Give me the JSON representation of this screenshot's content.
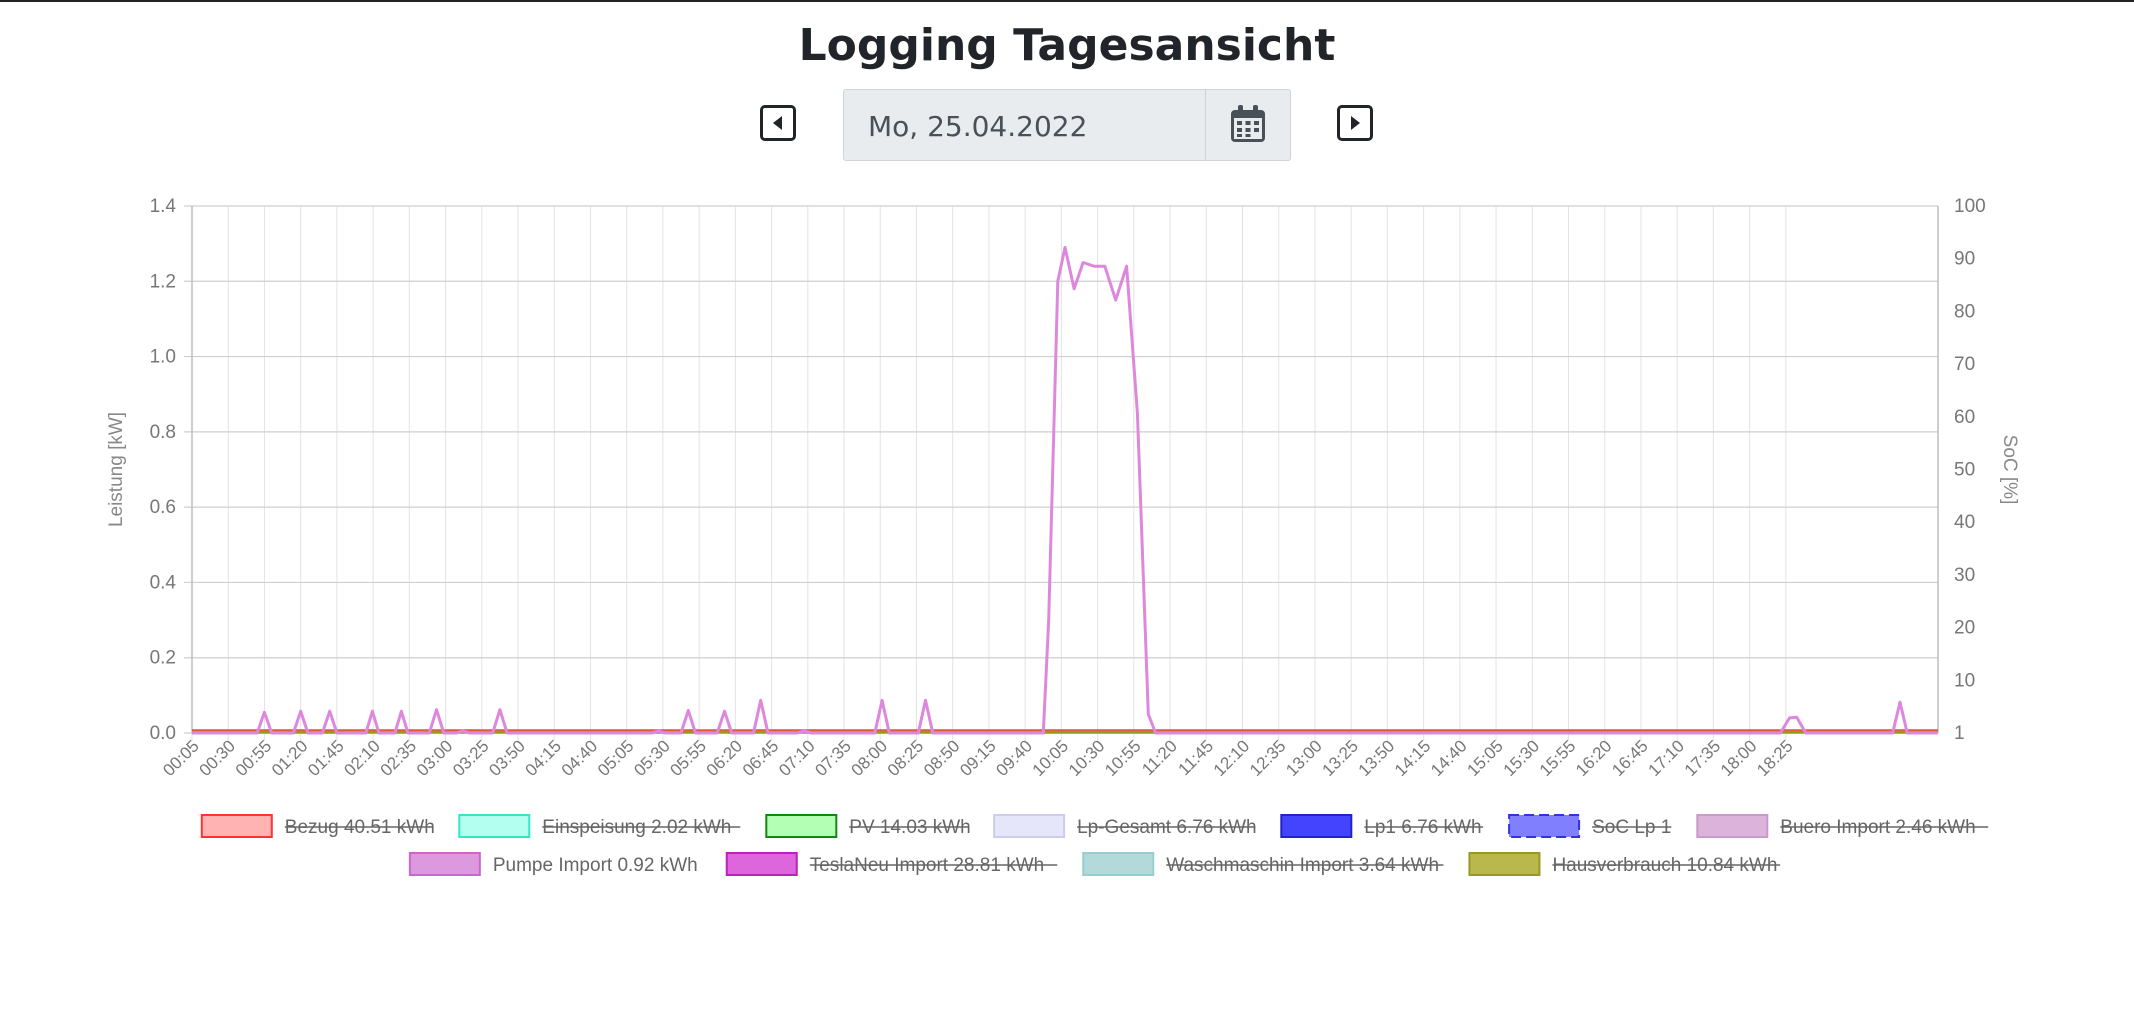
{
  "header": {
    "title": "Logging Tagesansicht",
    "date_value": "Mo, 25.04.2022"
  },
  "icons": {
    "prev": "caret-left-square-icon",
    "next": "caret-right-square-icon",
    "calendar": "calendar-icon"
  },
  "chart_data": {
    "type": "line",
    "ylabel_left": "Leistung [kW]",
    "ylabel_right": "SoC [%]",
    "ylim_left": [
      0,
      1.4
    ],
    "yticks_left": [
      "0.0",
      "0.2",
      "0.4",
      "0.6",
      "0.8",
      "1.0",
      "1.2",
      "1.4"
    ],
    "yticks_right": [
      "1",
      "10",
      "20",
      "30",
      "40",
      "50",
      "60",
      "70",
      "80",
      "90",
      "100"
    ],
    "x_labels": [
      "00:05",
      "00:30",
      "00:55",
      "01:20",
      "01:45",
      "02:10",
      "02:35",
      "03:00",
      "03:25",
      "03:50",
      "04:15",
      "04:40",
      "05:05",
      "05:30",
      "05:55",
      "06:20",
      "06:45",
      "07:10",
      "07:35",
      "08:00",
      "08:25",
      "08:50",
      "09:15",
      "09:40",
      "10:05",
      "10:30",
      "10:55",
      "11:20",
      "11:45",
      "12:10",
      "12:35",
      "13:00",
      "13:25",
      "13:50",
      "14:15",
      "14:40",
      "15:05",
      "15:30",
      "15:55",
      "16:20",
      "16:45",
      "17:10",
      "17:35",
      "18:00",
      "18:25"
    ],
    "grid": true,
    "legend_position": "bottom",
    "legend": [
      {
        "label": "Bezug 40.51 kWh",
        "fill": "#ffb3b3",
        "stroke": "#ff3333",
        "hidden": true,
        "dashed": false
      },
      {
        "label": "Einspeisung 2.02 kWh",
        "fill": "#b3fff0",
        "stroke": "#33e6c4",
        "hidden": true,
        "dashed": false
      },
      {
        "label": "PV 14.03 kWh",
        "fill": "#b3ffb3",
        "stroke": "#118811",
        "hidden": true,
        "dashed": false
      },
      {
        "label": "Lp-Gesamt 6.76 kWh",
        "fill": "#e6e6fa",
        "stroke": "#ccccee",
        "hidden": true,
        "dashed": false
      },
      {
        "label": "Lp1 6.76 kWh",
        "fill": "#4444ff",
        "stroke": "#2222cc",
        "hidden": true,
        "dashed": false
      },
      {
        "label": "SoC Lp 1",
        "fill": "#8080ff",
        "stroke": "#3333dd",
        "hidden": true,
        "dashed": true
      },
      {
        "label": "Buero Import 2.46 kWh",
        "fill": "#dbb3db",
        "stroke": "#cc99cc",
        "hidden": true,
        "dashed": false
      },
      {
        "label": "Pumpe Import 0.92 kWh",
        "fill": "#dd99dd",
        "stroke": "#cc66cc",
        "hidden": false,
        "dashed": false
      },
      {
        "label": "TeslaNeu Import 28.81 kWh",
        "fill": "#dd66dd",
        "stroke": "#bb22bb",
        "hidden": true,
        "dashed": false
      },
      {
        "label": "Waschmaschin Import 3.64 kWh",
        "fill": "#b3d9d9",
        "stroke": "#99cccc",
        "hidden": true,
        "dashed": false
      },
      {
        "label": "Hausverbrauch 10.84 kWh",
        "fill": "#b8b84d",
        "stroke": "#999922",
        "hidden": true,
        "dashed": false
      }
    ],
    "series": [
      {
        "name": "Pumpe Import 0.92 kWh",
        "color": "#dd88dd",
        "points": [
          [
            0.0,
            0
          ],
          [
            1.8,
            0
          ],
          [
            2.0,
            0.055
          ],
          [
            2.2,
            0
          ],
          [
            2.8,
            0
          ],
          [
            3.0,
            0.058
          ],
          [
            3.2,
            0
          ],
          [
            3.6,
            0
          ],
          [
            3.8,
            0.058
          ],
          [
            4.0,
            0
          ],
          [
            4.8,
            0
          ],
          [
            4.98,
            0.058
          ],
          [
            5.16,
            0
          ],
          [
            5.6,
            0
          ],
          [
            5.78,
            0.058
          ],
          [
            5.96,
            0
          ],
          [
            6.55,
            0
          ],
          [
            6.75,
            0.062
          ],
          [
            6.95,
            0
          ],
          [
            7.3,
            0
          ],
          [
            7.48,
            0.005
          ],
          [
            7.66,
            0
          ],
          [
            8.3,
            0
          ],
          [
            8.5,
            0.062
          ],
          [
            8.7,
            0
          ],
          [
            12.7,
            0
          ],
          [
            12.88,
            0.005
          ],
          [
            13.06,
            0
          ],
          [
            13.5,
            0
          ],
          [
            13.7,
            0.06
          ],
          [
            13.9,
            0
          ],
          [
            14.5,
            0
          ],
          [
            14.7,
            0.058
          ],
          [
            14.9,
            0
          ],
          [
            15.5,
            0
          ],
          [
            15.7,
            0.087
          ],
          [
            15.9,
            0
          ],
          [
            16.7,
            0
          ],
          [
            16.9,
            0.005
          ],
          [
            17.1,
            0
          ],
          [
            18.85,
            0
          ],
          [
            19.05,
            0.087
          ],
          [
            19.25,
            0
          ],
          [
            20.05,
            0
          ],
          [
            20.25,
            0.087
          ],
          [
            20.45,
            0
          ],
          [
            23.5,
            0
          ],
          [
            23.65,
            0.3
          ],
          [
            23.9,
            1.2
          ],
          [
            24.1,
            1.29
          ],
          [
            24.35,
            1.18
          ],
          [
            24.6,
            1.25
          ],
          [
            24.9,
            1.24
          ],
          [
            25.2,
            1.24
          ],
          [
            25.5,
            1.15
          ],
          [
            25.8,
            1.24
          ],
          [
            26.1,
            0.85
          ],
          [
            26.4,
            0.05
          ],
          [
            26.6,
            0
          ],
          [
            43.85,
            0
          ],
          [
            44.1,
            0.04
          ],
          [
            44.3,
            0.042
          ],
          [
            44.55,
            0
          ],
          [
            46.95,
            0
          ],
          [
            47.15,
            0.082
          ],
          [
            47.35,
            0
          ],
          [
            48.2,
            0
          ]
        ]
      },
      {
        "name": "Hausverbrauch 10.84 kWh",
        "color": "#999922",
        "points": [
          [
            0,
            0.002
          ],
          [
            48.2,
            0.002
          ]
        ]
      },
      {
        "name": "Bezug 40.51 kWh",
        "color": "#ff4444",
        "points": [
          [
            0,
            0.006
          ],
          [
            48.2,
            0.006
          ]
        ]
      }
    ]
  }
}
